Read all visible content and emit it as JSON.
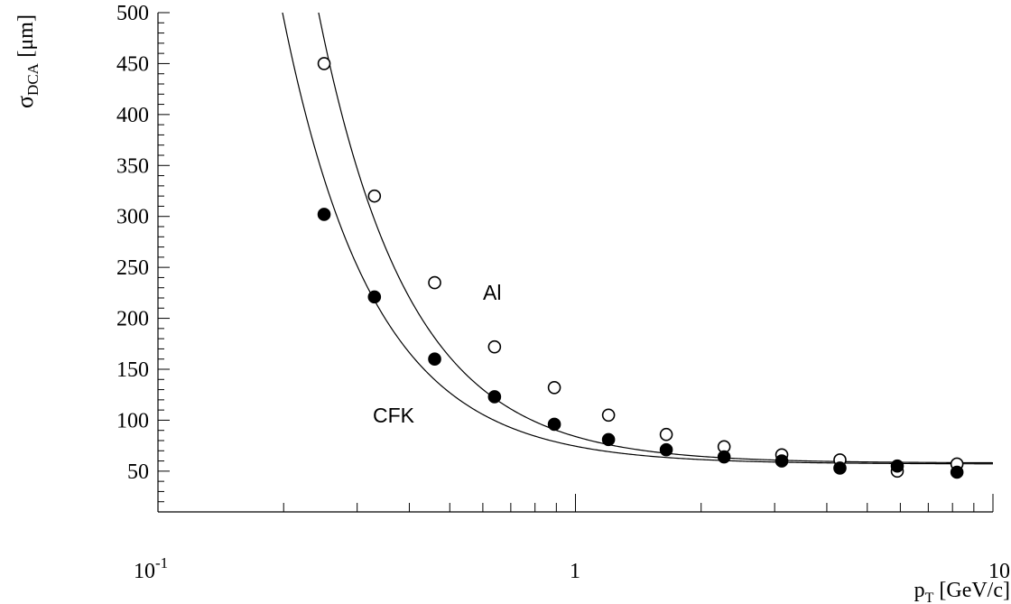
{
  "chart_data": {
    "type": "scatter",
    "x_scale": "log",
    "xlim": [
      0.1,
      10
    ],
    "ylim": [
      10,
      500
    ],
    "grid": false,
    "legend": "none",
    "x_ticks": [
      0.1,
      1,
      10
    ],
    "x_tick_labels": {
      "t0_base": "10",
      "t0_exp": "-1",
      "t1": "1",
      "t2": "10"
    },
    "y_ticks": [
      50,
      100,
      150,
      200,
      250,
      300,
      350,
      400,
      450,
      500
    ],
    "ylabel": {
      "main": "σ",
      "sub": "DCA",
      "unit": "[μm]"
    },
    "xlabel": {
      "main": "p",
      "sub": "T",
      "unit": "[GeV/c]"
    },
    "annotations": {
      "al": "Al",
      "cfk": "CFK"
    },
    "series": [
      {
        "name": "Al",
        "marker": "open-circle",
        "x": [
          0.25,
          0.33,
          0.46,
          0.64,
          0.89,
          1.2,
          1.65,
          2.27,
          3.12,
          4.3,
          5.9,
          8.2
        ],
        "y": [
          450,
          320,
          235,
          172,
          132,
          105,
          86,
          74,
          66,
          61,
          50,
          57
        ]
      },
      {
        "name": "CFK",
        "marker": "filled-circle",
        "x": [
          0.25,
          0.33,
          0.46,
          0.64,
          0.89,
          1.2,
          1.65,
          2.27,
          3.12,
          4.3,
          5.9,
          8.2
        ],
        "y": [
          302,
          221,
          160,
          123,
          96,
          81,
          71,
          64,
          60,
          53,
          55,
          49
        ]
      }
    ],
    "fits": [
      {
        "series": "Al",
        "a": 58,
        "b": 26
      },
      {
        "series": "CFK",
        "a": 57,
        "b": 17.5
      }
    ],
    "colors": {
      "ink": "#000000",
      "background": "#ffffff"
    }
  }
}
